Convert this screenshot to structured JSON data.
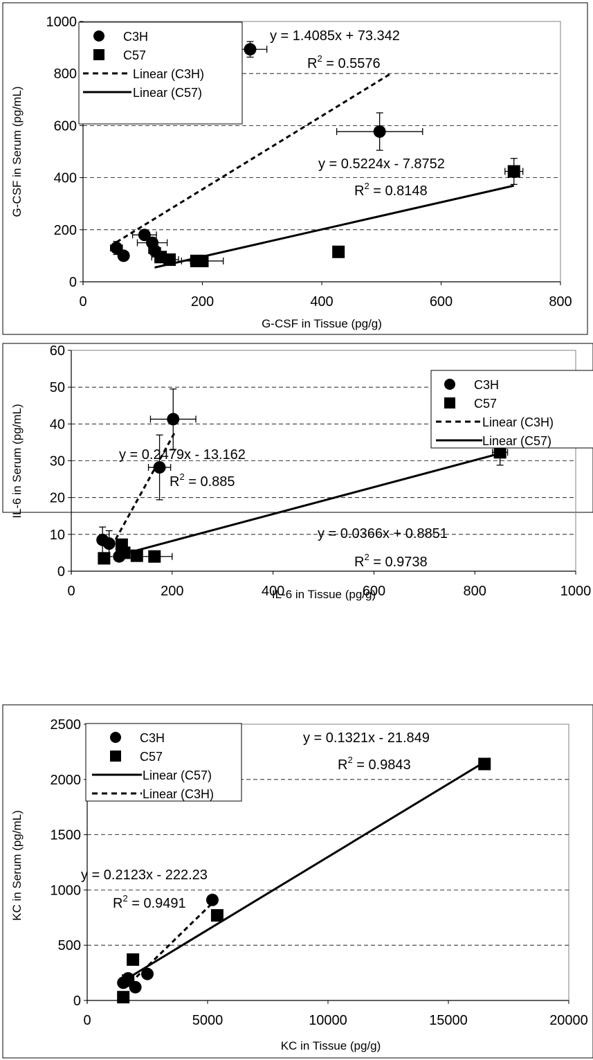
{
  "chart_data": [
    {
      "type": "scatter",
      "xlabel": "G-CSF in Tissue (pg/g)",
      "ylabel": "G-CSF in Serum (pg/mL)",
      "xlim": [
        0,
        800
      ],
      "ylim": [
        0,
        1000
      ],
      "xticks": [
        "0",
        "200",
        "400",
        "600",
        "800"
      ],
      "yticks": [
        "0",
        "200",
        "400",
        "600",
        "800",
        "1000"
      ],
      "grid": "horizontal-dashed",
      "legend_position": "top-left",
      "legend": [
        "C3H",
        "C57",
        "Linear (C3H)",
        "Linear (C57)"
      ],
      "series": [
        {
          "name": "C3H",
          "marker": "circle",
          "points": [
            [
              56,
              130
            ],
            [
              68,
              100
            ],
            [
              103,
              180
            ],
            [
              116,
              150
            ],
            [
              120,
              120
            ],
            [
              280,
              893
            ],
            [
              497,
              577
            ]
          ],
          "xerr": [
            10,
            6,
            20,
            25,
            10,
            28,
            72
          ],
          "yerr": [
            25,
            10,
            15,
            20,
            20,
            30,
            72
          ]
        },
        {
          "name": "C57",
          "marker": "square",
          "points": [
            [
              130,
              95
            ],
            [
              145,
              85
            ],
            [
              190,
              80
            ],
            [
              200,
              80
            ],
            [
              428,
              115
            ],
            [
              722,
              424
            ]
          ],
          "xerr": [
            15,
            15,
            10,
            35,
            0,
            15
          ],
          "yerr": [
            10,
            10,
            5,
            5,
            8,
            50
          ]
        }
      ],
      "trendlines": [
        {
          "name": "Linear (C3H)",
          "style": "dashed",
          "x_range": [
            56,
            515
          ],
          "slope": 1.4085,
          "intercept": 73.342
        },
        {
          "name": "Linear (C57)",
          "style": "solid",
          "x_range": [
            120,
            722
          ],
          "slope": 0.5224,
          "intercept": -7.8752
        }
      ],
      "annotations": [
        {
          "eq": "y = 1.4085x + 73.342",
          "r2_label": "R",
          "r2_exp": "2",
          "r2_value": " = 0.5576"
        },
        {
          "eq": "y = 0.5224x - 7.8752",
          "r2_label": "R",
          "r2_exp": "2",
          "r2_value": " = 0.8148"
        }
      ]
    },
    {
      "type": "scatter",
      "xlabel": "IL-6 in Tissue (pg/g)",
      "ylabel": "IL-6 in Serum (pg/mL)",
      "xlim": [
        0,
        1000
      ],
      "ylim": [
        0,
        60
      ],
      "xticks": [
        "0",
        "200",
        "400",
        "600",
        "800",
        "1000"
      ],
      "yticks": [
        "0",
        "10",
        "20",
        "30",
        "40",
        "50",
        "60"
      ],
      "grid": "horizontal-dashed",
      "legend_position": "top-right",
      "legend": [
        "C3H",
        "C57",
        "Linear (C3H)",
        "Linear (C57)"
      ],
      "series": [
        {
          "name": "C3H",
          "marker": "circle",
          "points": [
            [
              62,
              8.5
            ],
            [
              75,
              7.5
            ],
            [
              95,
              4
            ],
            [
              100,
              6
            ],
            [
              175,
              28.2
            ],
            [
              202,
              41.3
            ]
          ],
          "xerr": [
            5,
            10,
            10,
            10,
            22,
            45
          ],
          "yerr": [
            3.5,
            3.5,
            1,
            1.5,
            8.8,
            8.2
          ]
        },
        {
          "name": "C57",
          "marker": "square",
          "points": [
            [
              65,
              3.5
            ],
            [
              100,
              7.2
            ],
            [
              105,
              5
            ],
            [
              130,
              4.2
            ],
            [
              165,
              4
            ],
            [
              850,
              32.3
            ]
          ],
          "xerr": [
            5,
            5,
            5,
            5,
            35,
            15
          ],
          "yerr": [
            0.5,
            1,
            1,
            0.5,
            0.5,
            3.5
          ]
        }
      ],
      "trendlines": [
        {
          "name": "Linear (C3H)",
          "style": "dashed",
          "x_range": [
            80,
            205
          ],
          "slope": 0.2479,
          "intercept": -13.162
        },
        {
          "name": "Linear (C57)",
          "style": "solid",
          "x_range": [
            100,
            850
          ],
          "slope": 0.0366,
          "intercept": 0.8851
        }
      ],
      "annotations": [
        {
          "eq": "y = 0.2479x - 13.162",
          "r2_label": "R",
          "r2_exp": "2",
          "r2_value": " = 0.885"
        },
        {
          "eq": "y = 0.0366x + 0.8851",
          "r2_label": "R",
          "r2_exp": "2",
          "r2_value": " = 0.9738"
        }
      ]
    },
    {
      "type": "scatter",
      "xlabel": "KC in Tissue (pg/g)",
      "ylabel": "KC in Serum (pg/mL)",
      "xlim": [
        0,
        20000
      ],
      "ylim": [
        0,
        2500
      ],
      "xticks": [
        "0",
        "5000",
        "10000",
        "15000",
        "20000"
      ],
      "yticks": [
        "0",
        "500",
        "1000",
        "1500",
        "2000",
        "2500"
      ],
      "grid": "horizontal-dashed",
      "legend_position": "top-left",
      "legend": [
        "C3H",
        "C57",
        "Linear (C57)",
        "Linear (C3H)"
      ],
      "series": [
        {
          "name": "C3H",
          "marker": "circle",
          "points": [
            [
              1500,
              160
            ],
            [
              1700,
              200
            ],
            [
              2000,
              120
            ],
            [
              2500,
              240
            ],
            [
              5200,
              910
            ]
          ],
          "xerr": [
            0,
            0,
            0,
            0,
            0
          ],
          "yerr": [
            0,
            0,
            0,
            0,
            0
          ]
        },
        {
          "name": "C57",
          "marker": "square",
          "points": [
            [
              1500,
              30
            ],
            [
              1700,
              180
            ],
            [
              1900,
              370
            ],
            [
              5400,
              770
            ],
            [
              16500,
              2140
            ]
          ],
          "xerr": [
            0,
            0,
            0,
            0,
            0
          ],
          "yerr": [
            0,
            0,
            0,
            0,
            0
          ]
        }
      ],
      "trendlines": [
        {
          "name": "Linear (C3H)",
          "style": "dashed",
          "x_range": [
            1800,
            5200
          ],
          "slope": 0.2123,
          "intercept": -222.23
        },
        {
          "name": "Linear (C57)",
          "style": "solid",
          "x_range": [
            1800,
            16500
          ],
          "slope": 0.1321,
          "intercept": -21.849
        }
      ],
      "annotations": [
        {
          "eq": "y = 0.1321x - 21.849",
          "r2_label": "R",
          "r2_exp": "2",
          "r2_value": " = 0.9843"
        },
        {
          "eq": "y = 0.2123x - 222.23",
          "r2_label": "R",
          "r2_exp": "2",
          "r2_value": " = 0.9491"
        }
      ]
    }
  ]
}
